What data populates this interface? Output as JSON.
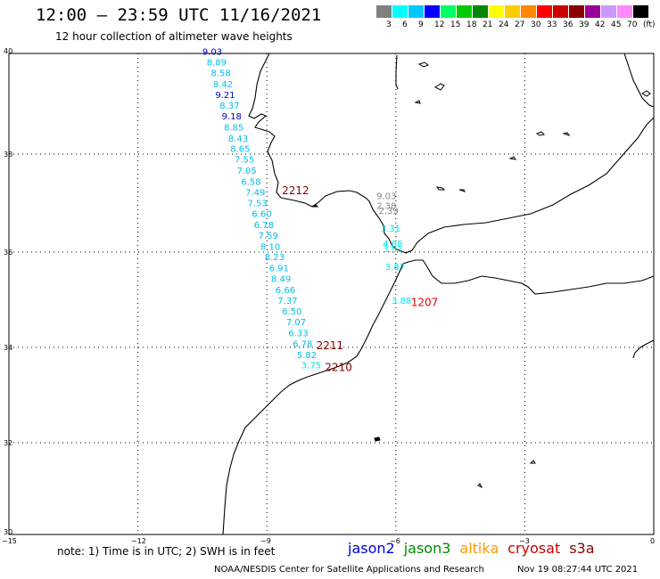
{
  "title": "12:00 – 23:59 UTC 11/16/2021",
  "subtitle": "12 hour collection of altimeter wave heights",
  "colorbar": {
    "colors": [
      "#808080",
      "#00ffff",
      "#00c8ff",
      "#0000ff",
      "#00ff66",
      "#00cc00",
      "#008800",
      "#ffff00",
      "#ffcc00",
      "#ff8800",
      "#ff0000",
      "#cc0000",
      "#880000",
      "#990099",
      "#cc99ff",
      "#ff88ff",
      "#000000"
    ],
    "labels": [
      "3",
      "6",
      "9",
      "12",
      "15",
      "18",
      "21",
      "24",
      "27",
      "30",
      "33",
      "36",
      "39",
      "42",
      "45",
      "70",
      "(ft)"
    ]
  },
  "axes": {
    "lon_ticks": [
      "−15",
      "−12",
      "−9",
      "−6",
      "−3",
      "0"
    ],
    "lat_ticks": [
      "40",
      "38",
      "36",
      "34",
      "32",
      "30"
    ]
  },
  "swh_points": [
    {
      "lon": -10.5,
      "lat": 39.97,
      "v": "9.03",
      "color": "#0000cc"
    },
    {
      "lon": -10.4,
      "lat": 39.75,
      "v": "8.89",
      "color": "#00bfe6"
    },
    {
      "lon": -10.3,
      "lat": 39.53,
      "v": "8.58",
      "color": "#00bfe6"
    },
    {
      "lon": -10.25,
      "lat": 39.3,
      "v": "8.42",
      "color": "#00bfe6"
    },
    {
      "lon": -10.2,
      "lat": 39.07,
      "v": "9.21",
      "color": "#0000cc"
    },
    {
      "lon": -10.1,
      "lat": 38.85,
      "v": "8.37",
      "color": "#00bfe6"
    },
    {
      "lon": -10.05,
      "lat": 38.63,
      "v": "9.18",
      "color": "#0000cc"
    },
    {
      "lon": -10.0,
      "lat": 38.4,
      "v": "8.85",
      "color": "#00bfe6"
    },
    {
      "lon": -9.9,
      "lat": 38.17,
      "v": "8.43",
      "color": "#00bfe6"
    },
    {
      "lon": -9.85,
      "lat": 37.95,
      "v": "8.65",
      "color": "#00bfe6"
    },
    {
      "lon": -9.75,
      "lat": 37.73,
      "v": "7.55",
      "color": "#00bfe6"
    },
    {
      "lon": -9.7,
      "lat": 37.5,
      "v": "7.05",
      "color": "#00bfe6"
    },
    {
      "lon": -9.6,
      "lat": 37.27,
      "v": "6.58",
      "color": "#00bfe6"
    },
    {
      "lon": -9.5,
      "lat": 37.05,
      "v": "7.49",
      "color": "#00bfe6"
    },
    {
      "lon": -9.45,
      "lat": 36.82,
      "v": "7.53",
      "color": "#00bfe6"
    },
    {
      "lon": -9.35,
      "lat": 36.6,
      "v": "6.60",
      "color": "#00bfe6"
    },
    {
      "lon": -9.3,
      "lat": 36.37,
      "v": "6.78",
      "color": "#00bfe6"
    },
    {
      "lon": -9.2,
      "lat": 36.15,
      "v": "7.59",
      "color": "#00bfe6"
    },
    {
      "lon": -9.15,
      "lat": 35.92,
      "v": "8.10",
      "color": "#00bfe6"
    },
    {
      "lon": -9.05,
      "lat": 35.7,
      "v": "8.23",
      "color": "#00bfe6"
    },
    {
      "lon": -8.95,
      "lat": 35.47,
      "v": "6.91",
      "color": "#00bfe6"
    },
    {
      "lon": -8.9,
      "lat": 35.25,
      "v": "8.49",
      "color": "#00bfe6"
    },
    {
      "lon": -8.8,
      "lat": 35.02,
      "v": "6.66",
      "color": "#00bfe6"
    },
    {
      "lon": -8.75,
      "lat": 34.8,
      "v": "7.37",
      "color": "#00bfe6"
    },
    {
      "lon": -8.65,
      "lat": 34.57,
      "v": "6.50",
      "color": "#00bfe6"
    },
    {
      "lon": -8.55,
      "lat": 34.35,
      "v": "7.07",
      "color": "#00bfe6"
    },
    {
      "lon": -8.5,
      "lat": 34.12,
      "v": "6.33",
      "color": "#00bfe6"
    },
    {
      "lon": -8.4,
      "lat": 33.9,
      "v": "6.78",
      "color": "#00bfe6"
    },
    {
      "lon": -8.3,
      "lat": 33.67,
      "v": "5.82",
      "color": "#00bfe6"
    },
    {
      "lon": -8.2,
      "lat": 33.45,
      "v": "3.75",
      "color": "#00e6e6"
    },
    {
      "lon": -6.45,
      "lat": 36.97,
      "v": "9.03",
      "color": "#888888"
    },
    {
      "lon": -6.45,
      "lat": 36.77,
      "v": "2.38",
      "color": "#888888"
    },
    {
      "lon": -6.4,
      "lat": 36.67,
      "v": "2.39",
      "color": "#888888"
    },
    {
      "lon": -6.35,
      "lat": 36.3,
      "v": "3.31",
      "color": "#00e6e6"
    },
    {
      "lon": -6.3,
      "lat": 35.98,
      "v": "4.88",
      "color": "#00e6e6"
    },
    {
      "lon": -6.3,
      "lat": 35.87,
      "v": "3.91",
      "color": "#00e6e6"
    },
    {
      "lon": -6.25,
      "lat": 35.5,
      "v": "3.87",
      "color": "#00e6e6"
    },
    {
      "lon": -6.1,
      "lat": 34.8,
      "v": "3.88",
      "color": "#00e6e6"
    }
  ],
  "pass_labels": [
    {
      "lon": -8.65,
      "lat": 37.07,
      "v": "2212",
      "color": "#880000"
    },
    {
      "lon": -5.65,
      "lat": 34.75,
      "v": "1207",
      "color": "#ee0000"
    },
    {
      "lon": -7.85,
      "lat": 33.85,
      "v": "2211",
      "color": "#880000"
    },
    {
      "lon": -7.65,
      "lat": 33.4,
      "v": "2210",
      "color": "#880000"
    }
  ],
  "footer_note": "note:  1) Time is in UTC;  2) SWH is in feet",
  "legend": [
    {
      "label": "jason2",
      "color": "#0000dd"
    },
    {
      "label": "jason3",
      "color": "#008800"
    },
    {
      "label": "altika",
      "color": "#ff9900"
    },
    {
      "label": "cryosat",
      "color": "#cc0000"
    },
    {
      "label": "s3a",
      "color": "#880000"
    }
  ],
  "credit": "NOAA/NESDIS Center for Satellite Applications and Research",
  "generated": "Nov 19 08:27:44 UTC 2021"
}
